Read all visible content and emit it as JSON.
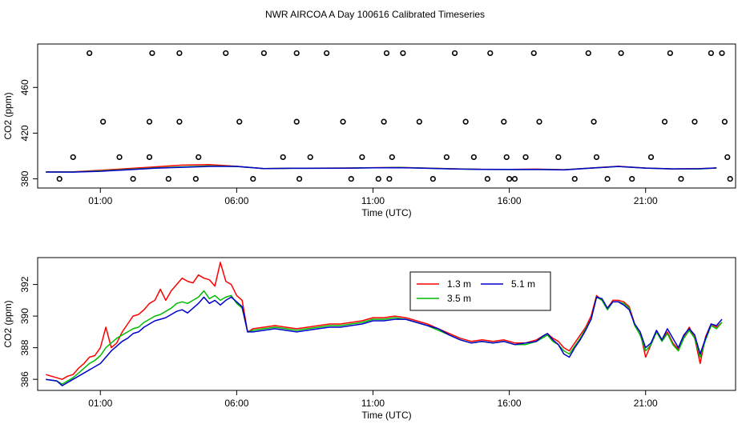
{
  "title": "NWR AIRCOA A  Day 100616  Calibrated Timeseries",
  "chart_data": [
    {
      "type": "line",
      "panel": "top",
      "xlabel": "Time (UTC)",
      "ylabel": "CO2 (ppm)",
      "xlim": [
        -1.3,
        24.3
      ],
      "ylim": [
        372,
        498
      ],
      "xticks": [
        1,
        6,
        11,
        16,
        21
      ],
      "xtick_labels": [
        "01:00",
        "06:00",
        "11:00",
        "16:00",
        "21:00"
      ],
      "yticks": [
        380,
        420,
        460
      ],
      "ytick_labels": [
        "380",
        "420",
        "460"
      ],
      "series": [
        {
          "name": "1.3 m",
          "color": "#ff0000",
          "x": [
            -1.0,
            0.0,
            1.0,
            2.0,
            3.0,
            4.0,
            5.0,
            6.0,
            7.0,
            8.0,
            9.0,
            10.0,
            11.0,
            12.0,
            13.0,
            14.0,
            15.0,
            16.0,
            17.0,
            18.0,
            19.0,
            20.0,
            21.0,
            22.0,
            23.0,
            23.6
          ],
          "y": [
            386.0,
            386.2,
            387.5,
            389.0,
            390.5,
            392.0,
            392.5,
            391.0,
            389.0,
            389.3,
            389.4,
            389.5,
            389.8,
            390.0,
            389.4,
            388.8,
            388.4,
            388.3,
            388.5,
            388.0,
            389.5,
            391.0,
            389.5,
            388.7,
            389.0,
            389.6
          ]
        },
        {
          "name": "3.5 m",
          "color": "#00bb00",
          "x": [
            -1.0,
            0.0,
            1.0,
            2.0,
            3.0,
            4.0,
            5.0,
            6.0,
            7.0,
            8.0,
            9.0,
            10.0,
            11.0,
            12.0,
            13.0,
            14.0,
            15.0,
            16.0,
            17.0,
            18.0,
            19.0,
            20.0,
            21.0,
            22.0,
            23.0,
            23.6
          ],
          "y": [
            386.0,
            386.0,
            387.0,
            388.3,
            389.6,
            390.5,
            391.3,
            390.8,
            389.0,
            389.2,
            389.3,
            389.4,
            389.7,
            389.9,
            389.3,
            388.7,
            388.3,
            388.2,
            388.3,
            387.9,
            389.4,
            390.8,
            389.4,
            388.6,
            388.7,
            389.5
          ]
        },
        {
          "name": "5.1 m",
          "color": "#0000cc",
          "x": [
            -1.0,
            0.0,
            1.0,
            2.0,
            3.0,
            4.0,
            5.0,
            6.0,
            7.0,
            8.0,
            9.0,
            10.0,
            11.0,
            12.0,
            13.0,
            14.0,
            15.0,
            16.0,
            17.0,
            18.0,
            19.0,
            20.0,
            21.0,
            22.0,
            23.0,
            23.6
          ],
          "y": [
            386.0,
            385.9,
            386.6,
            387.9,
            389.3,
            390.1,
            390.9,
            390.9,
            389.0,
            389.2,
            389.2,
            389.3,
            389.7,
            389.8,
            389.2,
            388.6,
            388.3,
            388.2,
            388.3,
            387.8,
            389.4,
            390.8,
            389.4,
            388.7,
            388.9,
            389.6
          ]
        }
      ],
      "points": {
        "name": "calibration standards",
        "marker": "open circle",
        "color": "#000000",
        "x": [
          -0.5,
          0.0,
          0.6,
          1.1,
          1.7,
          2.2,
          2.8,
          2.8,
          2.9,
          3.5,
          3.9,
          3.9,
          4.5,
          4.6,
          5.6,
          6.1,
          6.6,
          7.0,
          7.7,
          8.2,
          8.2,
          8.3,
          8.7,
          9.3,
          9.9,
          10.2,
          10.6,
          11.2,
          11.4,
          11.5,
          11.6,
          11.7,
          12.1,
          12.7,
          13.2,
          13.7,
          14.0,
          14.4,
          14.7,
          15.2,
          15.3,
          15.8,
          15.9,
          16.0,
          16.2,
          16.6,
          16.9,
          17.1,
          17.8,
          18.4,
          18.9,
          19.1,
          19.2,
          19.6,
          20.1,
          20.5,
          21.2,
          21.7,
          21.9,
          22.3,
          22.8,
          23.4,
          23.8,
          23.9,
          24.0,
          24.1
        ],
        "y": [
          380,
          399,
          490,
          430,
          399,
          380,
          430,
          399,
          490,
          380,
          430,
          490,
          380,
          399,
          490,
          430,
          380,
          490,
          399,
          430,
          490,
          380,
          399,
          490,
          430,
          380,
          399,
          380,
          430,
          490,
          380,
          399,
          490,
          430,
          380,
          399,
          490,
          430,
          399,
          380,
          490,
          430,
          399,
          380,
          380,
          399,
          490,
          430,
          399,
          380,
          490,
          430,
          399,
          380,
          490,
          380,
          399,
          430,
          490,
          380,
          430,
          490,
          490,
          430,
          399,
          380
        ]
      }
    },
    {
      "type": "line",
      "panel": "bottom",
      "xlabel": "Time (UTC)",
      "ylabel": "CO2 (ppm)",
      "xlim": [
        -1.3,
        24.3
      ],
      "ylim": [
        385.3,
        393.7
      ],
      "xticks": [
        1,
        6,
        11,
        16,
        21
      ],
      "xtick_labels": [
        "01:00",
        "06:00",
        "11:00",
        "16:00",
        "21:00"
      ],
      "yticks": [
        386,
        388,
        390,
        392
      ],
      "ytick_labels": [
        "386",
        "388",
        "390",
        "392"
      ],
      "legend": "top-center",
      "series": [
        {
          "name": "1.3 m",
          "color": "#ff0000",
          "x": [
            -1.0,
            -0.6,
            -0.4,
            -0.2,
            0.0,
            0.2,
            0.4,
            0.6,
            0.8,
            1.0,
            1.2,
            1.4,
            1.6,
            1.8,
            2.0,
            2.2,
            2.4,
            2.6,
            2.8,
            3.0,
            3.2,
            3.4,
            3.6,
            3.8,
            4.0,
            4.2,
            4.4,
            4.6,
            4.8,
            5.0,
            5.2,
            5.4,
            5.6,
            5.8,
            6.0,
            6.2,
            6.4,
            6.6,
            7.0,
            7.4,
            7.8,
            8.2,
            8.6,
            9.0,
            9.4,
            9.8,
            10.2,
            10.6,
            11.0,
            11.4,
            11.8,
            12.2,
            12.6,
            13.0,
            13.4,
            13.8,
            14.2,
            14.6,
            15.0,
            15.4,
            15.8,
            16.2,
            16.6,
            17.0,
            17.2,
            17.4,
            17.6,
            17.8,
            18.0,
            18.2,
            18.4,
            18.6,
            18.8,
            19.0,
            19.2,
            19.4,
            19.6,
            19.8,
            20.0,
            20.2,
            20.4,
            20.6,
            20.8,
            21.0,
            21.2,
            21.4,
            21.6,
            21.8,
            22.0,
            22.2,
            22.4,
            22.6,
            22.8,
            23.0,
            23.2,
            23.4,
            23.6,
            23.8
          ],
          "y": [
            386.3,
            386.1,
            386.0,
            386.2,
            386.3,
            386.7,
            387.0,
            387.4,
            387.5,
            388.0,
            389.3,
            388.0,
            388.3,
            389.0,
            389.5,
            390.0,
            390.1,
            390.4,
            390.8,
            391.0,
            391.7,
            391.0,
            391.6,
            392.0,
            392.4,
            392.2,
            392.1,
            392.6,
            392.4,
            392.3,
            391.9,
            393.4,
            392.2,
            392.0,
            391.3,
            391.0,
            389.0,
            389.2,
            389.3,
            389.4,
            389.3,
            389.2,
            389.3,
            389.4,
            389.5,
            389.5,
            389.6,
            389.7,
            389.9,
            389.9,
            390.0,
            389.9,
            389.7,
            389.5,
            389.2,
            388.9,
            388.6,
            388.4,
            388.5,
            388.4,
            388.5,
            388.3,
            388.3,
            388.5,
            388.7,
            388.9,
            388.6,
            388.4,
            388.0,
            387.8,
            388.3,
            388.8,
            389.3,
            390.0,
            391.3,
            391.0,
            390.5,
            391.0,
            391.0,
            390.9,
            390.6,
            389.5,
            389.0,
            387.4,
            388.2,
            389.0,
            388.5,
            389.0,
            388.3,
            387.9,
            388.7,
            389.3,
            388.6,
            387.0,
            388.7,
            389.5,
            389.3,
            389.6
          ]
        },
        {
          "name": "3.5 m",
          "color": "#00bb00",
          "x": [
            -1.0,
            -0.6,
            -0.4,
            -0.2,
            0.0,
            0.2,
            0.4,
            0.6,
            0.8,
            1.0,
            1.2,
            1.4,
            1.6,
            1.8,
            2.0,
            2.2,
            2.4,
            2.6,
            2.8,
            3.0,
            3.2,
            3.4,
            3.6,
            3.8,
            4.0,
            4.2,
            4.4,
            4.6,
            4.8,
            5.0,
            5.2,
            5.4,
            5.6,
            5.8,
            6.0,
            6.2,
            6.4,
            6.6,
            7.0,
            7.4,
            7.8,
            8.2,
            8.6,
            9.0,
            9.4,
            9.8,
            10.2,
            10.6,
            11.0,
            11.4,
            11.8,
            12.2,
            12.6,
            13.0,
            13.4,
            13.8,
            14.2,
            14.6,
            15.0,
            15.4,
            15.8,
            16.2,
            16.6,
            17.0,
            17.2,
            17.4,
            17.6,
            17.8,
            18.0,
            18.2,
            18.4,
            18.6,
            18.8,
            19.0,
            19.2,
            19.4,
            19.6,
            19.8,
            20.0,
            20.2,
            20.4,
            20.6,
            20.8,
            21.0,
            21.2,
            21.4,
            21.6,
            21.8,
            22.0,
            22.2,
            22.4,
            22.6,
            22.8,
            23.0,
            23.2,
            23.4,
            23.6,
            23.8
          ],
          "y": [
            386.0,
            385.9,
            385.7,
            385.9,
            386.1,
            386.4,
            386.7,
            387.0,
            387.2,
            387.5,
            388.0,
            388.3,
            388.6,
            388.8,
            389.0,
            389.2,
            389.3,
            389.6,
            389.8,
            390.0,
            390.1,
            390.3,
            390.5,
            390.8,
            390.9,
            390.8,
            391.0,
            391.2,
            391.6,
            391.1,
            391.3,
            391.0,
            391.2,
            391.3,
            390.8,
            390.5,
            389.0,
            389.1,
            389.2,
            389.3,
            389.2,
            389.1,
            389.2,
            389.3,
            389.4,
            389.4,
            389.5,
            389.6,
            389.8,
            389.8,
            389.9,
            389.8,
            389.6,
            389.4,
            389.1,
            388.8,
            388.5,
            388.3,
            388.4,
            388.3,
            388.4,
            388.2,
            388.2,
            388.4,
            388.6,
            388.8,
            388.4,
            388.2,
            387.8,
            387.6,
            388.1,
            388.6,
            389.2,
            389.8,
            391.2,
            391.0,
            390.4,
            390.9,
            390.9,
            390.8,
            390.5,
            389.4,
            388.8,
            387.8,
            388.2,
            389.0,
            388.4,
            388.9,
            388.2,
            387.8,
            388.6,
            389.1,
            388.6,
            387.4,
            388.5,
            389.4,
            389.2,
            389.6
          ]
        },
        {
          "name": "5.1 m",
          "color": "#0000cc",
          "x": [
            -1.0,
            -0.6,
            -0.4,
            -0.2,
            0.0,
            0.2,
            0.4,
            0.6,
            0.8,
            1.0,
            1.2,
            1.4,
            1.6,
            1.8,
            2.0,
            2.2,
            2.4,
            2.6,
            2.8,
            3.0,
            3.2,
            3.4,
            3.6,
            3.8,
            4.0,
            4.2,
            4.4,
            4.6,
            4.8,
            5.0,
            5.2,
            5.4,
            5.6,
            5.8,
            6.0,
            6.2,
            6.4,
            6.6,
            7.0,
            7.4,
            7.8,
            8.2,
            8.6,
            9.0,
            9.4,
            9.8,
            10.2,
            10.6,
            11.0,
            11.4,
            11.8,
            12.2,
            12.6,
            13.0,
            13.4,
            13.8,
            14.2,
            14.6,
            15.0,
            15.4,
            15.8,
            16.2,
            16.6,
            17.0,
            17.2,
            17.4,
            17.6,
            17.8,
            18.0,
            18.2,
            18.4,
            18.6,
            18.8,
            19.0,
            19.2,
            19.4,
            19.6,
            19.8,
            20.0,
            20.2,
            20.4,
            20.6,
            20.8,
            21.0,
            21.2,
            21.4,
            21.6,
            21.8,
            22.0,
            22.2,
            22.4,
            22.6,
            22.8,
            23.0,
            23.2,
            23.4,
            23.6,
            23.8
          ],
          "y": [
            386.0,
            385.9,
            385.6,
            385.8,
            386.0,
            386.2,
            386.4,
            386.6,
            386.8,
            387.0,
            387.4,
            387.8,
            388.1,
            388.4,
            388.6,
            388.9,
            389.0,
            389.3,
            389.5,
            389.7,
            389.8,
            389.9,
            390.1,
            390.3,
            390.4,
            390.2,
            390.5,
            390.8,
            391.2,
            390.8,
            391.0,
            390.7,
            391.0,
            391.2,
            390.9,
            390.6,
            389.0,
            389.0,
            389.1,
            389.2,
            389.1,
            389.0,
            389.1,
            389.2,
            389.3,
            389.3,
            389.4,
            389.5,
            389.7,
            389.7,
            389.8,
            389.8,
            389.6,
            389.4,
            389.2,
            388.8,
            388.5,
            388.3,
            388.4,
            388.3,
            388.4,
            388.2,
            388.3,
            388.4,
            388.7,
            388.9,
            388.5,
            388.2,
            387.6,
            387.4,
            388.0,
            388.5,
            389.1,
            389.8,
            391.2,
            391.1,
            390.5,
            390.9,
            390.9,
            390.7,
            390.4,
            389.5,
            389.0,
            388.0,
            388.3,
            389.1,
            388.5,
            389.2,
            388.6,
            388.0,
            388.8,
            389.2,
            388.8,
            387.6,
            388.6,
            389.5,
            389.4,
            389.8
          ]
        }
      ]
    }
  ]
}
